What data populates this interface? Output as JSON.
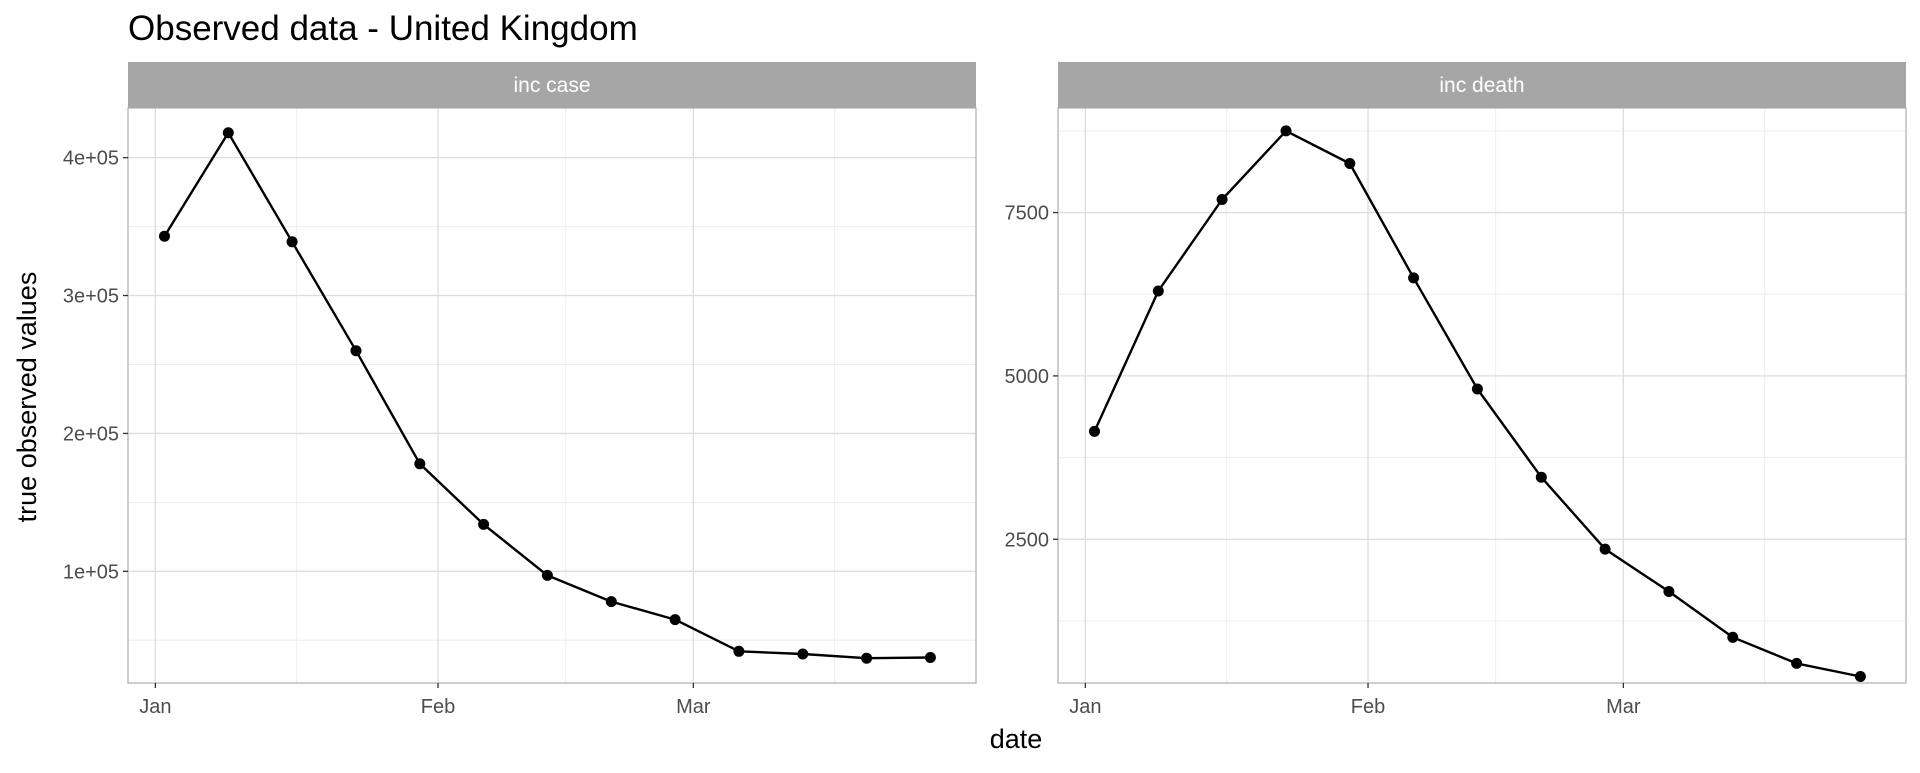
{
  "chart_data": {
    "type": "line",
    "title": "Observed data - United Kingdom",
    "xlabel": "date",
    "ylabel": "true observed values",
    "colors": {
      "line": "#000000",
      "point": "#000000",
      "strip": "#a6a6a6",
      "grid_major": "#dddddd",
      "grid_minor": "#eeeeee",
      "panel_border": "#b3b3b3"
    },
    "x_tick_labels": [
      "Jan",
      "Feb",
      "Mar"
    ],
    "x_tick_dates": [
      "2021-01-01",
      "2021-02-01",
      "2021-03-01"
    ],
    "xlim": [
      "2020-12-29",
      "2021-04-01"
    ],
    "grid": true,
    "panels": [
      {
        "name": "inc case",
        "ylim": [
          19000,
          436000
        ],
        "y_major_ticks": [
          100000,
          200000,
          300000,
          400000
        ],
        "y_tick_labels": [
          "1e+05",
          "2e+05",
          "3e+05",
          "4e+05"
        ],
        "y_minor_ticks": [
          50000,
          150000,
          250000,
          350000
        ],
        "x": [
          "2021-01-02",
          "2021-01-09",
          "2021-01-16",
          "2021-01-23",
          "2021-01-30",
          "2021-02-06",
          "2021-02-13",
          "2021-02-20",
          "2021-02-27",
          "2021-03-06",
          "2021-03-13",
          "2021-03-20",
          "2021-03-27"
        ],
        "values": [
          343000,
          418000,
          339000,
          260000,
          178000,
          134000,
          97000,
          78000,
          65000,
          42000,
          40000,
          37000,
          37500
        ]
      },
      {
        "name": "inc death",
        "ylim": [
          300,
          9100
        ],
        "y_major_ticks": [
          2500,
          5000,
          7500
        ],
        "y_tick_labels": [
          "2500",
          "5000",
          "7500"
        ],
        "y_minor_ticks": [
          1250,
          3750,
          6250,
          8750
        ],
        "x": [
          "2021-01-02",
          "2021-01-09",
          "2021-01-16",
          "2021-01-23",
          "2021-01-30",
          "2021-02-06",
          "2021-02-13",
          "2021-02-20",
          "2021-02-27",
          "2021-03-06",
          "2021-03-13",
          "2021-03-20",
          "2021-03-27"
        ],
        "values": [
          4150,
          6300,
          7700,
          8750,
          8250,
          6500,
          4800,
          3450,
          2350,
          1700,
          1000,
          600,
          400
        ]
      }
    ]
  }
}
